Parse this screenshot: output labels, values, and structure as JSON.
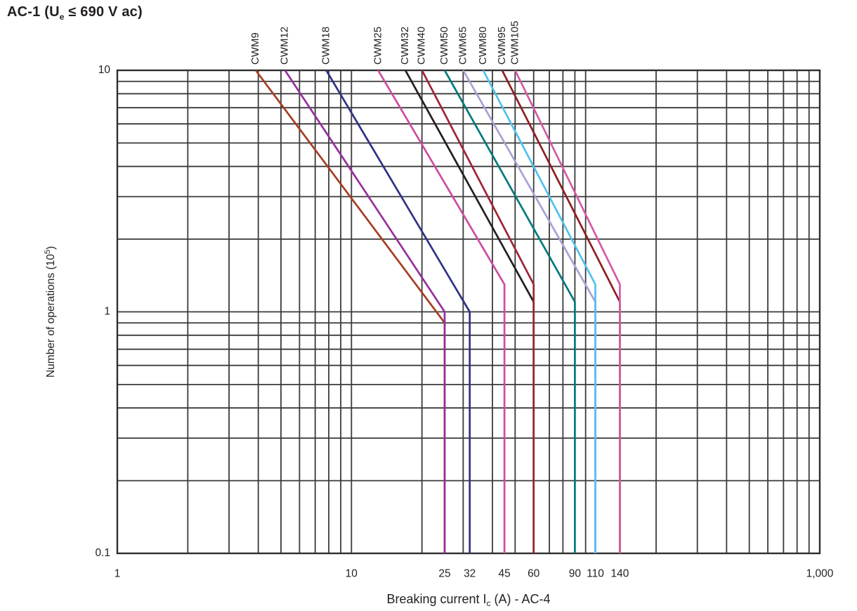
{
  "title": {
    "pre": "AC-1 (U",
    "sub": "e",
    "post": " ≤ 690 V ac)"
  },
  "colors": {
    "background": "#ffffff",
    "grid": "#3a3a3a",
    "frame": "#2e2e2e",
    "text": "#231f20"
  },
  "chart_data": {
    "type": "line",
    "title": "AC-1 (Ue ≤ 690 V ac)",
    "xlabel": {
      "pre": "Breaking current I",
      "sub": "c",
      "post": " (A) - AC-4"
    },
    "ylabel": {
      "pre": "Number of operations (10",
      "sup": "5",
      "post": ")"
    },
    "x_scale": "log",
    "y_scale": "log",
    "xlim": [
      1,
      1000
    ],
    "ylim": [
      0.1,
      10
    ],
    "grid": "log-decades-with-minors",
    "legend_position": "series-labels-rotated-above-top-axis",
    "x_ticks": [
      {
        "v": 1,
        "label": "1"
      },
      {
        "v": 10,
        "label": "10"
      },
      {
        "v": 25,
        "label": "25"
      },
      {
        "v": 32,
        "label": "32"
      },
      {
        "v": 45,
        "label": "45"
      },
      {
        "v": 60,
        "label": "60"
      },
      {
        "v": 90,
        "label": "90"
      },
      {
        "v": 110,
        "label": "110"
      },
      {
        "v": 140,
        "label": "140"
      },
      {
        "v": 1000,
        "label": "1,000"
      }
    ],
    "y_ticks": [
      {
        "v": 0.1,
        "label": "0.1"
      },
      {
        "v": 1,
        "label": "1"
      },
      {
        "v": 10,
        "label": "10"
      }
    ],
    "series": [
      {
        "name": "CWM9",
        "color": "#a63d22",
        "points": [
          [
            3.9,
            10
          ],
          [
            25,
            0.9
          ],
          [
            25,
            0.1
          ]
        ]
      },
      {
        "name": "CWM12",
        "color": "#96309b",
        "points": [
          [
            5.2,
            10
          ],
          [
            25,
            1.0
          ],
          [
            25,
            0.1
          ]
        ]
      },
      {
        "name": "CWM18",
        "color": "#2f3287",
        "points": [
          [
            7.8,
            10
          ],
          [
            32,
            1.0
          ],
          [
            32,
            0.1
          ]
        ]
      },
      {
        "name": "CWM25",
        "color": "#cc4da0",
        "points": [
          [
            13,
            10
          ],
          [
            45,
            1.3
          ],
          [
            45,
            0.1
          ]
        ]
      },
      {
        "name": "CWM32",
        "color": "#231f20",
        "points": [
          [
            17,
            10
          ],
          [
            60,
            1.1
          ],
          [
            60,
            0.1
          ]
        ]
      },
      {
        "name": "CWM40",
        "color": "#a02532",
        "points": [
          [
            20,
            10
          ],
          [
            60,
            1.3
          ],
          [
            60,
            0.1
          ]
        ]
      },
      {
        "name": "CWM50",
        "color": "#00797d",
        "points": [
          [
            25,
            10
          ],
          [
            90,
            1.1
          ],
          [
            90,
            0.1
          ]
        ]
      },
      {
        "name": "CWM65",
        "color": "#a7a2d5",
        "points": [
          [
            30,
            10
          ],
          [
            110,
            1.1
          ],
          [
            110,
            0.1
          ]
        ]
      },
      {
        "name": "CWM80",
        "color": "#52c0ee",
        "points": [
          [
            36.5,
            10
          ],
          [
            110,
            1.3
          ],
          [
            110,
            0.1
          ]
        ]
      },
      {
        "name": "CWM95",
        "color": "#8e1e23",
        "points": [
          [
            44,
            10
          ],
          [
            140,
            1.1
          ],
          [
            140,
            0.1
          ]
        ]
      },
      {
        "name": "CWM105",
        "color": "#d45ba4",
        "points": [
          [
            50,
            10
          ],
          [
            140,
            1.3
          ],
          [
            140,
            0.1
          ]
        ]
      }
    ]
  }
}
